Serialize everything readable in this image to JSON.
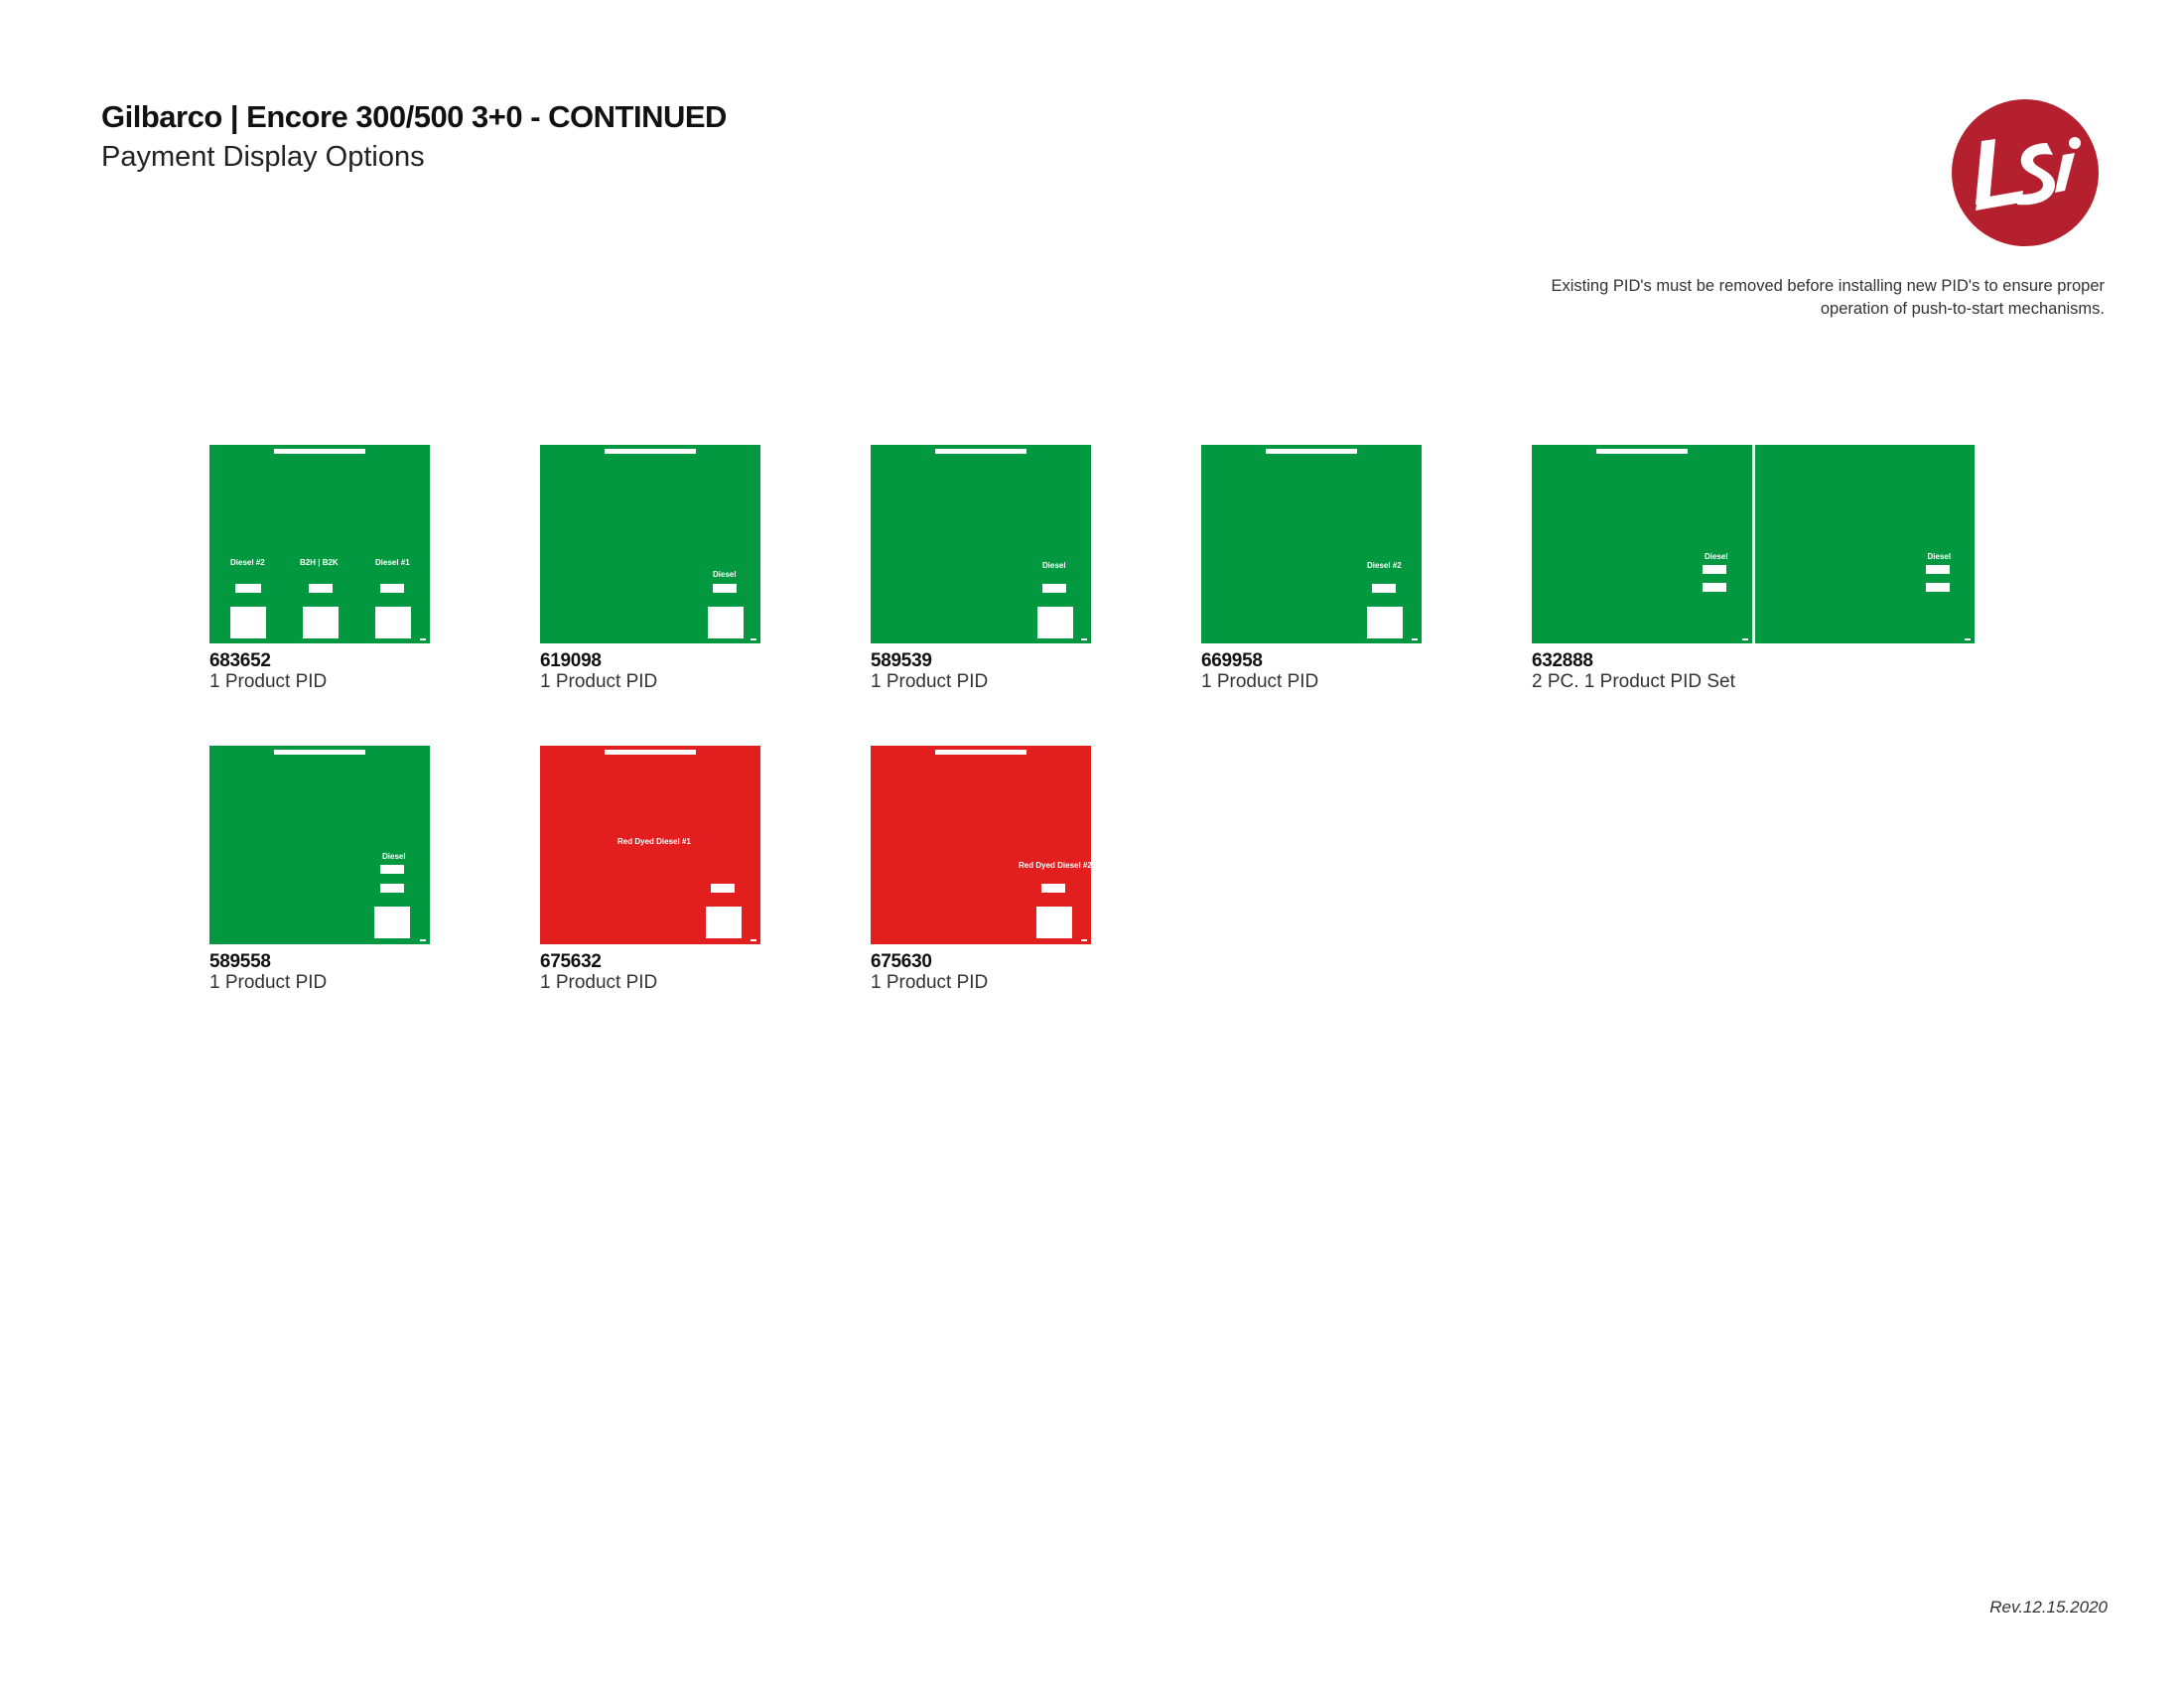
{
  "header": {
    "title": "Gilbarco | Encore 300/500 3+0 - CONTINUED",
    "subtitle": "Payment Display Options"
  },
  "notice": {
    "line1": "Existing PID's must be removed before installing new PID's to ensure proper",
    "line2": "operation of push-to-start mechanisms."
  },
  "logo": {
    "text": "LSI",
    "color": "#b5202e"
  },
  "colors": {
    "green": "#02983f",
    "red": "#e31e1e"
  },
  "products": [
    {
      "number": "683652",
      "description": "1 Product PID",
      "color": "green",
      "labels": [
        "Diesel #2",
        "B2H | B2K",
        "Diesel #1"
      ]
    },
    {
      "number": "619098",
      "description": "1 Product PID",
      "color": "green",
      "labels": [
        "Diesel"
      ]
    },
    {
      "number": "589539",
      "description": "1 Product PID",
      "color": "green",
      "labels": [
        "Diesel"
      ]
    },
    {
      "number": "669958",
      "description": "1 Product PID",
      "color": "green",
      "labels": [
        "Diesel #2"
      ]
    },
    {
      "number": "632888",
      "description": "2 PC. 1 Product PID Set",
      "color": "green",
      "labels": [
        "Diesel",
        "Diesel"
      ]
    },
    {
      "number": "589558",
      "description": "1 Product PID",
      "color": "green",
      "labels": [
        "Diesel"
      ]
    },
    {
      "number": "675632",
      "description": "1 Product PID",
      "color": "red",
      "labels": [
        "Red Dyed Diesel #1"
      ]
    },
    {
      "number": "675630",
      "description": "1 Product PID",
      "color": "red",
      "labels": [
        "Red Dyed Diesel #2"
      ]
    }
  ],
  "footer": {
    "revision": "Rev.12.15.2020"
  }
}
